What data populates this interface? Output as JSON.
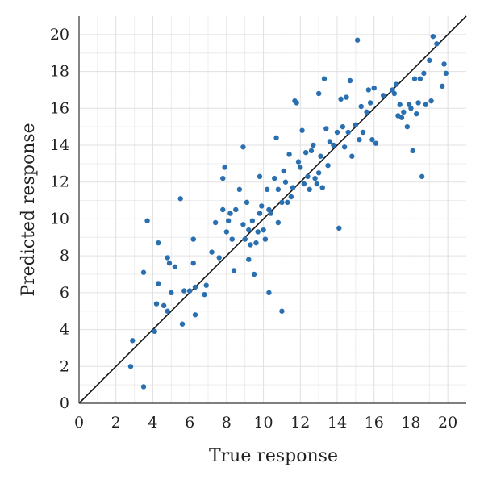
{
  "chart_data": {
    "type": "scatter",
    "title": "",
    "xlabel": "True response",
    "ylabel": "Predicted response",
    "xlim": [
      0,
      21
    ],
    "ylim": [
      0,
      21
    ],
    "xticks": [
      0,
      2,
      4,
      6,
      8,
      10,
      12,
      14,
      16,
      18,
      20
    ],
    "yticks": [
      0,
      2,
      4,
      6,
      8,
      10,
      12,
      14,
      16,
      18,
      20
    ],
    "grid": true,
    "legend": "none",
    "point_color": "#2a6fb0",
    "reference_line": {
      "type": "identity",
      "color": "#111111"
    },
    "series": [
      {
        "points": [
          [
            2.8,
            2.0
          ],
          [
            2.9,
            3.4
          ],
          [
            3.5,
            0.9
          ],
          [
            3.5,
            7.1
          ],
          [
            3.7,
            9.9
          ],
          [
            4.1,
            3.9
          ],
          [
            4.2,
            5.4
          ],
          [
            4.3,
            6.5
          ],
          [
            4.3,
            8.7
          ],
          [
            4.6,
            5.3
          ],
          [
            4.8,
            5.0
          ],
          [
            4.8,
            7.9
          ],
          [
            4.9,
            7.6
          ],
          [
            5.0,
            6.0
          ],
          [
            5.2,
            7.4
          ],
          [
            5.5,
            11.1
          ],
          [
            5.6,
            4.3
          ],
          [
            5.7,
            6.1
          ],
          [
            6.0,
            6.1
          ],
          [
            6.2,
            8.9
          ],
          [
            6.2,
            7.6
          ],
          [
            6.3,
            6.3
          ],
          [
            6.3,
            4.8
          ],
          [
            6.8,
            5.9
          ],
          [
            6.9,
            6.4
          ],
          [
            7.2,
            8.2
          ],
          [
            7.4,
            9.8
          ],
          [
            7.6,
            7.9
          ],
          [
            7.8,
            12.2
          ],
          [
            7.8,
            10.5
          ],
          [
            7.9,
            12.8
          ],
          [
            8.0,
            9.3
          ],
          [
            8.1,
            9.9
          ],
          [
            8.2,
            10.3
          ],
          [
            8.3,
            8.9
          ],
          [
            8.4,
            7.2
          ],
          [
            8.5,
            10.5
          ],
          [
            8.7,
            11.6
          ],
          [
            8.9,
            13.9
          ],
          [
            8.9,
            9.7
          ],
          [
            9.0,
            8.9
          ],
          [
            9.1,
            10.9
          ],
          [
            9.2,
            9.4
          ],
          [
            9.2,
            7.8
          ],
          [
            9.3,
            8.6
          ],
          [
            9.4,
            9.9
          ],
          [
            9.5,
            7.0
          ],
          [
            9.6,
            8.7
          ],
          [
            9.7,
            9.3
          ],
          [
            9.8,
            12.3
          ],
          [
            9.8,
            10.3
          ],
          [
            9.9,
            10.7
          ],
          [
            10.0,
            9.4
          ],
          [
            10.1,
            8.9
          ],
          [
            10.2,
            11.6
          ],
          [
            10.3,
            10.5
          ],
          [
            10.3,
            6.0
          ],
          [
            10.4,
            10.3
          ],
          [
            10.6,
            12.2
          ],
          [
            10.7,
            14.4
          ],
          [
            10.8,
            11.6
          ],
          [
            10.8,
            9.8
          ],
          [
            11.0,
            10.9
          ],
          [
            11.0,
            5.0
          ],
          [
            11.1,
            12.6
          ],
          [
            11.2,
            12.0
          ],
          [
            11.3,
            10.9
          ],
          [
            11.4,
            13.5
          ],
          [
            11.5,
            11.2
          ],
          [
            11.6,
            11.7
          ],
          [
            11.7,
            16.4
          ],
          [
            11.8,
            16.3
          ],
          [
            11.9,
            13.1
          ],
          [
            12.0,
            12.8
          ],
          [
            12.1,
            14.8
          ],
          [
            12.2,
            11.9
          ],
          [
            12.3,
            13.6
          ],
          [
            12.4,
            12.3
          ],
          [
            12.5,
            11.6
          ],
          [
            12.6,
            13.7
          ],
          [
            12.7,
            14.0
          ],
          [
            12.8,
            12.2
          ],
          [
            12.9,
            11.9
          ],
          [
            13.0,
            12.5
          ],
          [
            13.0,
            16.8
          ],
          [
            13.1,
            13.4
          ],
          [
            13.2,
            11.7
          ],
          [
            13.3,
            17.6
          ],
          [
            13.4,
            14.9
          ],
          [
            13.5,
            12.9
          ],
          [
            13.6,
            14.2
          ],
          [
            13.8,
            14.0
          ],
          [
            14.0,
            14.7
          ],
          [
            14.1,
            9.5
          ],
          [
            14.2,
            16.5
          ],
          [
            14.3,
            15.0
          ],
          [
            14.4,
            13.9
          ],
          [
            14.5,
            16.6
          ],
          [
            14.6,
            14.7
          ],
          [
            14.7,
            17.5
          ],
          [
            14.8,
            13.4
          ],
          [
            15.0,
            15.1
          ],
          [
            15.1,
            19.7
          ],
          [
            15.2,
            14.3
          ],
          [
            15.3,
            16.1
          ],
          [
            15.4,
            14.7
          ],
          [
            15.6,
            15.8
          ],
          [
            15.7,
            17.0
          ],
          [
            15.8,
            16.3
          ],
          [
            15.9,
            14.3
          ],
          [
            16.0,
            17.1
          ],
          [
            16.1,
            14.1
          ],
          [
            16.5,
            16.7
          ],
          [
            17.0,
            17.0
          ],
          [
            17.1,
            16.8
          ],
          [
            17.2,
            17.3
          ],
          [
            17.3,
            15.6
          ],
          [
            17.4,
            16.2
          ],
          [
            17.5,
            15.5
          ],
          [
            17.6,
            15.8
          ],
          [
            17.8,
            15.0
          ],
          [
            17.9,
            16.2
          ],
          [
            18.0,
            16.0
          ],
          [
            18.1,
            13.7
          ],
          [
            18.2,
            17.6
          ],
          [
            18.3,
            15.7
          ],
          [
            18.4,
            16.3
          ],
          [
            18.5,
            17.6
          ],
          [
            18.6,
            12.3
          ],
          [
            18.7,
            17.9
          ],
          [
            18.8,
            16.2
          ],
          [
            19.0,
            18.6
          ],
          [
            19.1,
            16.4
          ],
          [
            19.2,
            19.9
          ],
          [
            19.4,
            19.5
          ],
          [
            19.7,
            17.2
          ],
          [
            19.8,
            18.4
          ],
          [
            19.9,
            17.9
          ]
        ]
      }
    ]
  }
}
